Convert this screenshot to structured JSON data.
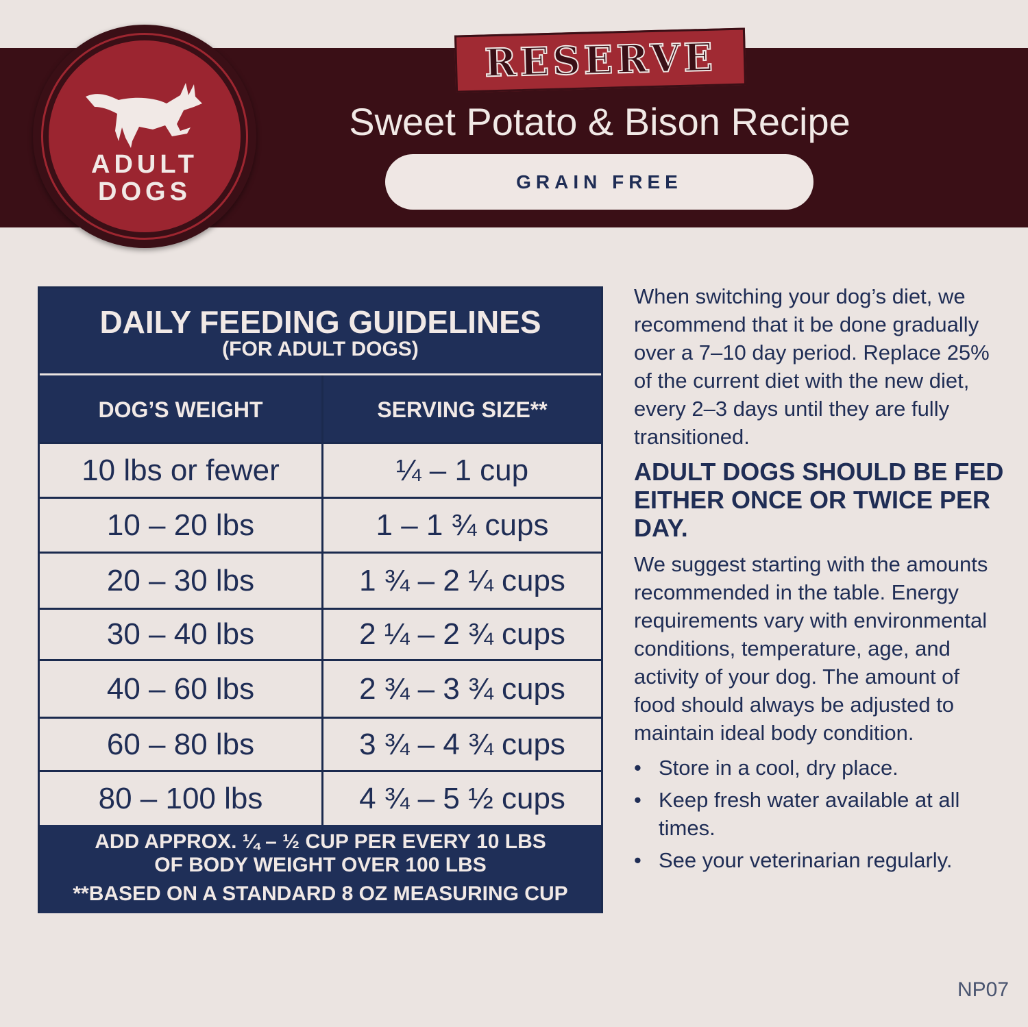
{
  "header": {
    "badge": {
      "line1": "ADULT",
      "line2": "DOGS",
      "icon": "running-dog-icon"
    },
    "brand_banner": "RESERVE",
    "title": "Sweet Potato & Bison Recipe",
    "pill": "GRAIN FREE"
  },
  "table": {
    "title": "DAILY FEEDING GUIDELINES",
    "subtitle": "(FOR ADULT DOGS)",
    "columns": [
      "DOG’S WEIGHT",
      "SERVING SIZE**"
    ],
    "rows": [
      {
        "weight": "10 lbs or fewer",
        "serving": "¼ – 1 cup"
      },
      {
        "weight": "10 – 20 lbs",
        "serving": "1 – 1 ¾ cups"
      },
      {
        "weight": "20 – 30 lbs",
        "serving": "1 ¾ –  2 ¼ cups"
      },
      {
        "weight": "30 – 40 lbs",
        "serving": "2 ¼ – 2 ¾ cups"
      },
      {
        "weight": "40 – 60 lbs",
        "serving": "2 ¾ – 3 ¾ cups"
      },
      {
        "weight": "60 – 80 lbs",
        "serving": "3 ¾ – 4 ¾ cups"
      },
      {
        "weight": "80 – 100 lbs",
        "serving": "4 ¾ – 5 ½ cups"
      }
    ],
    "footer": {
      "line1": "ADD APPROX. ¼ – ½ CUP PER EVERY 10 LBS",
      "line2": "OF BODY WEIGHT OVER 100 LBS",
      "line3": "**BASED ON A STANDARD 8 OZ MEASURING CUP"
    }
  },
  "side": {
    "intro": "When switching your dog’s diet, we recommend that it be done gradually over a 7–10 day period. Replace 25% of the current diet with the new diet, every 2–3 days until they are fully transitioned.",
    "heading": "ADULT DOGS SHOULD BE FED EITHER ONCE OR TWICE PER DAY.",
    "body": "We suggest starting with the amounts recommended in the table. Energy requirements vary with environmental conditions, temperature, age, and activity of your dog. The amount of food should always be adjusted to maintain ideal body condition.",
    "bullets": [
      "Store in a cool, dry place.",
      "Keep fresh water available at all times.",
      "See your veterinarian regularly."
    ]
  },
  "code": "NP07",
  "colors": {
    "maroon": "#3a0f16",
    "red": "#9b2530",
    "navy": "#1f2f58",
    "cream": "#ebe4e1"
  }
}
